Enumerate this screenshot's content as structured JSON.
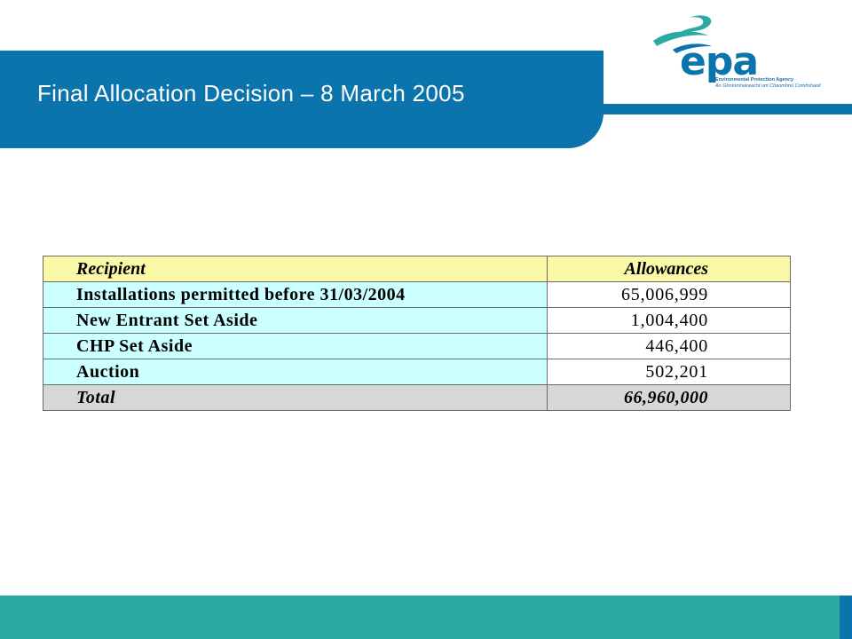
{
  "slide": {
    "title": "Final Allocation Decision – 8 March 2005"
  },
  "logo": {
    "wordmark": "epa",
    "tagline_line1": "Environmental Protection Agency",
    "tagline_line2": "An Ghníomhaireacht um Chaomhnú Comhshaoil"
  },
  "table": {
    "headers": {
      "recipient": "Recipient",
      "allowances": "Allowances"
    },
    "rows": [
      {
        "recipient": "Installations permitted before 31/03/2004",
        "allowances": "65,006,999"
      },
      {
        "recipient": "New Entrant Set Aside",
        "allowances": "1,004,400"
      },
      {
        "recipient": "CHP Set Aside",
        "allowances": "446,400"
      },
      {
        "recipient": "Auction",
        "allowances": "502,201"
      }
    ],
    "total": {
      "recipient": "Total",
      "allowances": "66,960,000"
    }
  },
  "colors": {
    "brand_blue": "#0b74ad",
    "brand_teal": "#2aaaa3",
    "header_row": "#fbf8a8",
    "recipient_cells": "#ccffff",
    "total_row": "#d7d7d7"
  }
}
